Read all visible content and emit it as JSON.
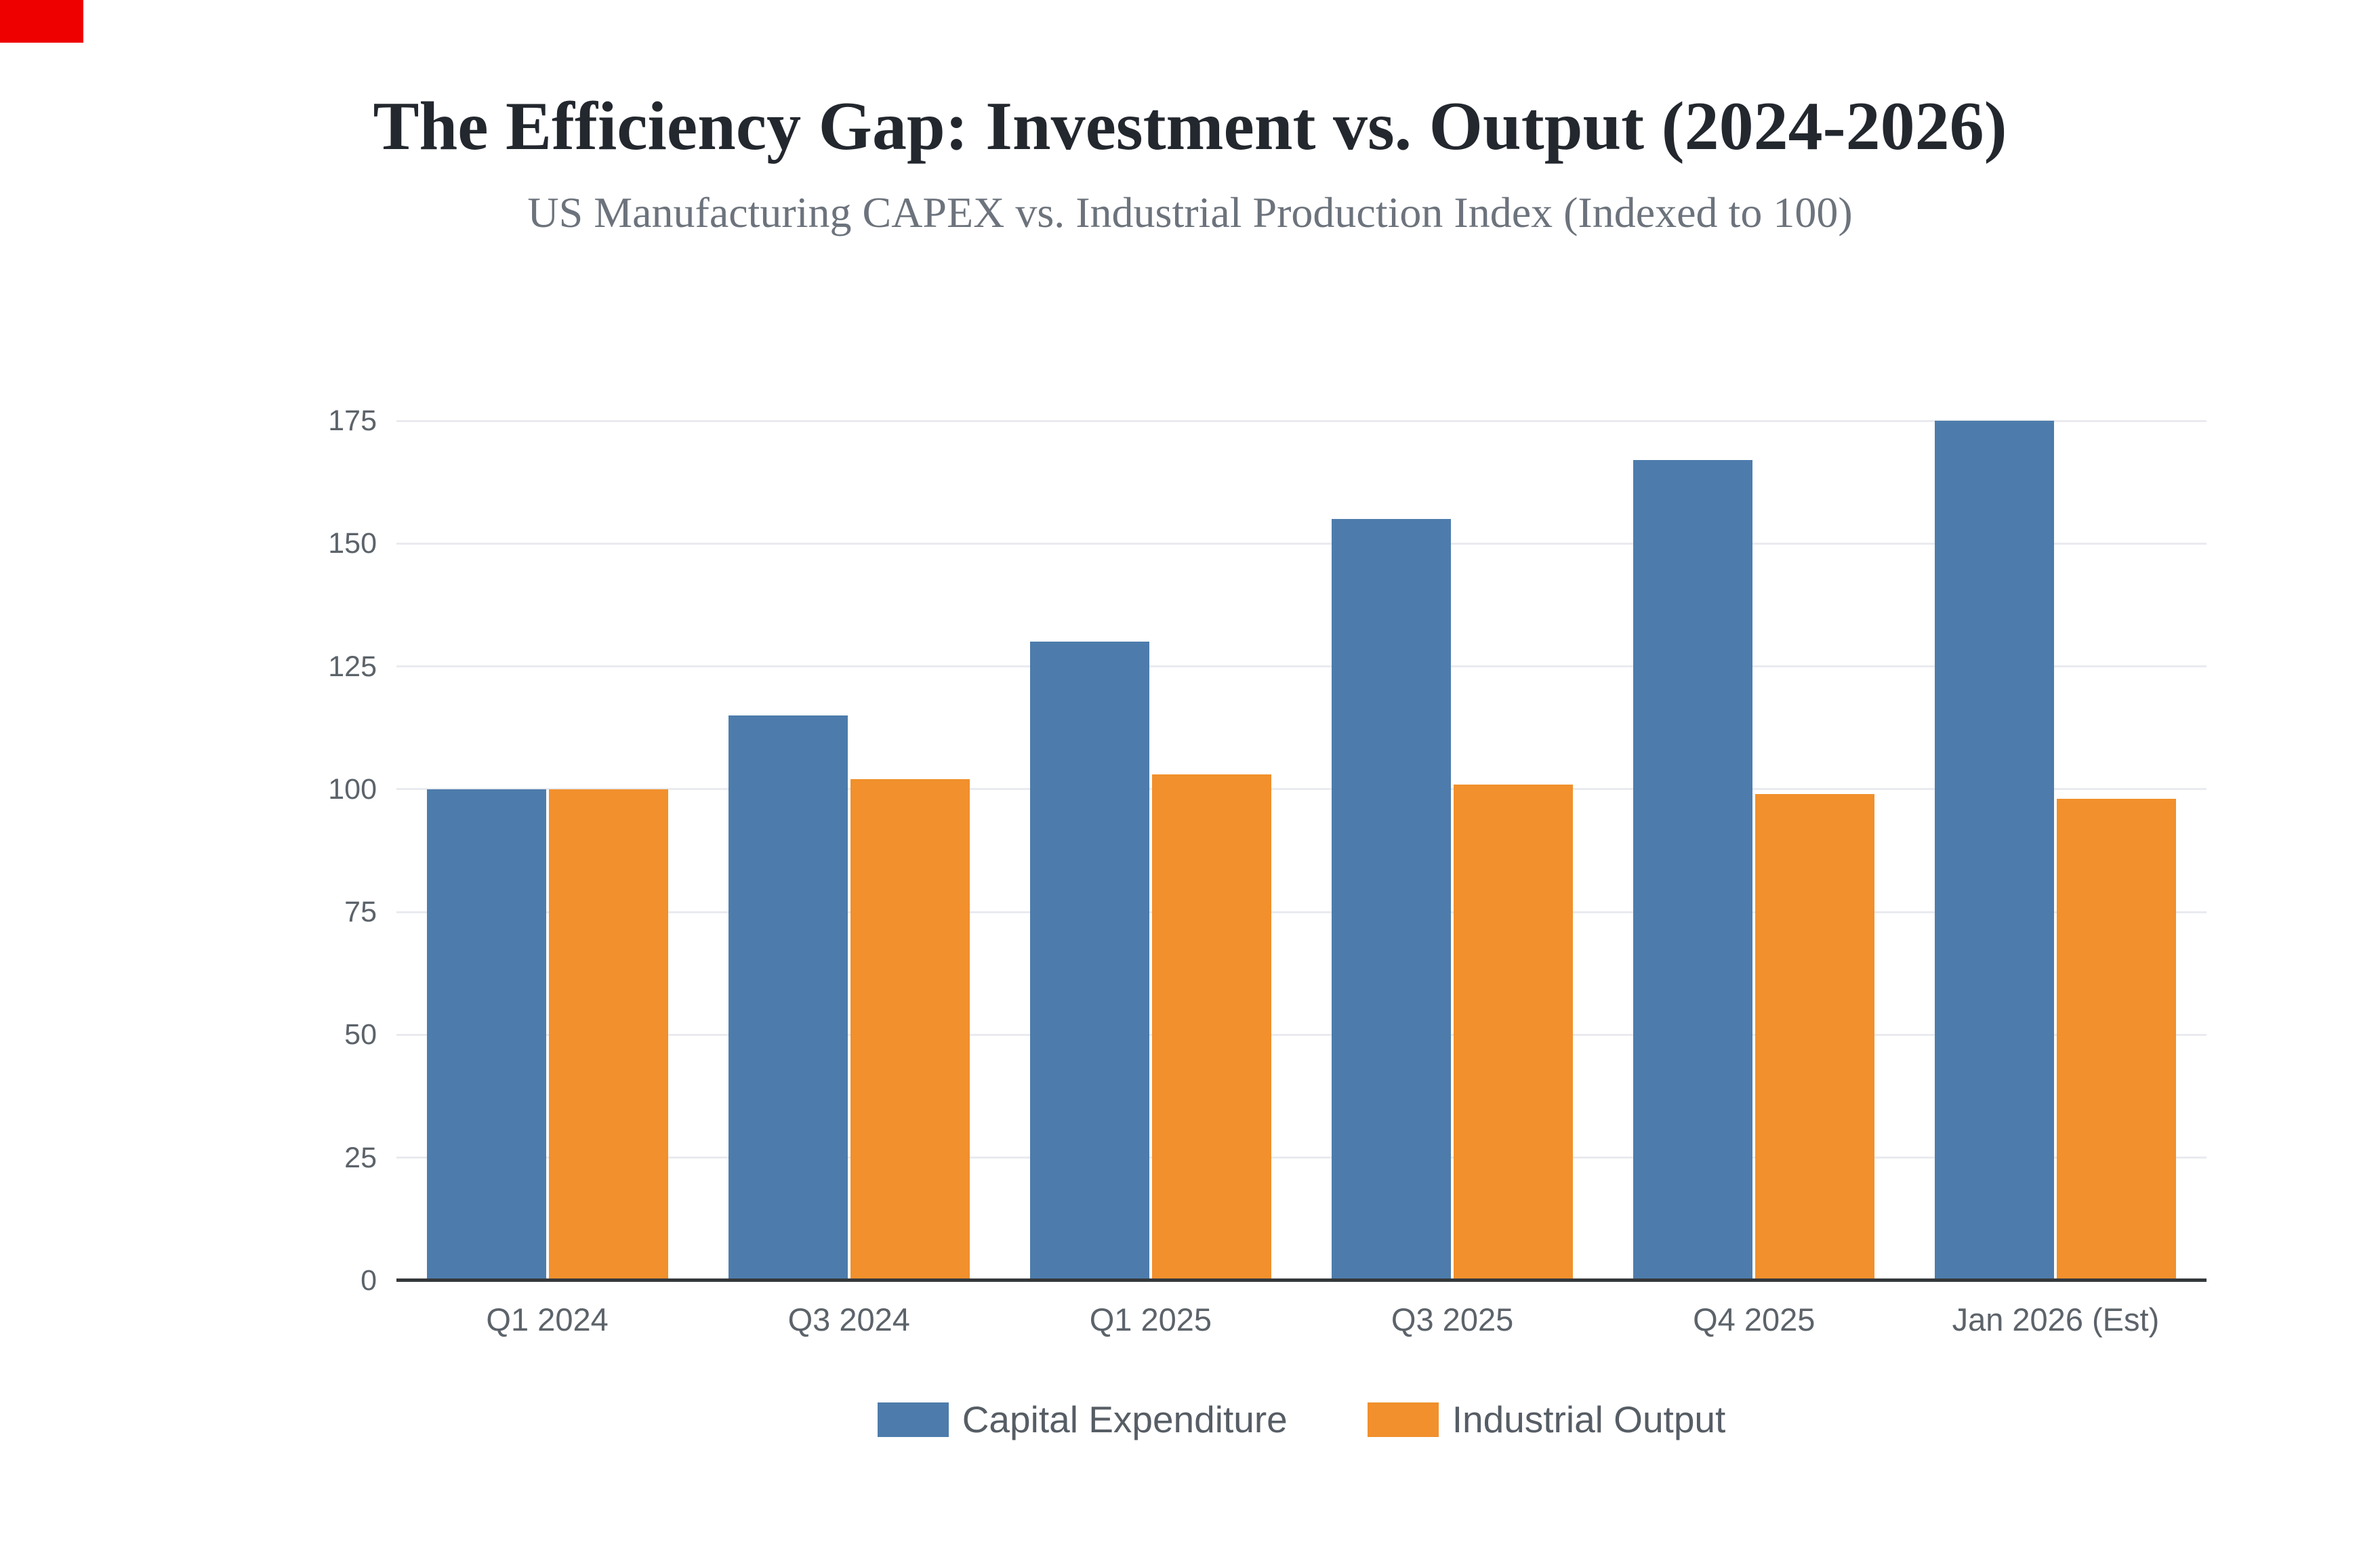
{
  "chart_data": {
    "type": "bar",
    "title": "The Efficiency Gap: Investment vs. Output (2024-2026)",
    "subtitle": "US Manufacturing CAPEX vs. Industrial Production Index (Indexed to 100)",
    "categories": [
      "Q1 2024",
      "Q3 2024",
      "Q1 2025",
      "Q3 2025",
      "Q4 2025",
      "Jan 2026 (Est)"
    ],
    "series": [
      {
        "name": "Capital Expenditure",
        "color": "#4D7CAC",
        "values": [
          100,
          115,
          130,
          155,
          167,
          175
        ]
      },
      {
        "name": "Industrial Output",
        "color": "#F1902C",
        "values": [
          100,
          102,
          103,
          101,
          99,
          98
        ]
      }
    ],
    "ylim": [
      0,
      175
    ],
    "yticks": [
      0,
      25,
      50,
      75,
      100,
      125,
      150,
      175
    ],
    "xlabel": "",
    "ylabel": "",
    "grid": "horizontal",
    "legend_position": "bottom",
    "colors": {
      "background": "#FFFFFF",
      "title": "#23272E",
      "subtitle": "#6C737C",
      "tick_label": "#5C636A",
      "legend_label": "#565D65",
      "gridline": "#E9EBEF",
      "axis_line": "#35383B"
    }
  },
  "ui": {
    "corner_marker_color": "#EF0000"
  }
}
